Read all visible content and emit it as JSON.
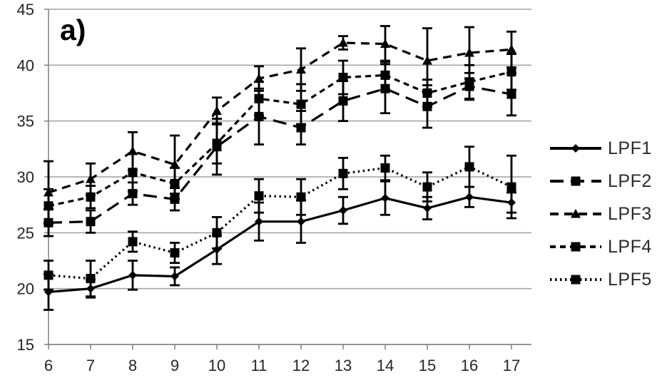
{
  "figure_label": "a)",
  "colors": {
    "series": "#000000",
    "gridline": "#a0a0a0",
    "axis": "#808080",
    "tick_text": "#262626"
  },
  "chart_data": {
    "type": "line",
    "title": "",
    "xlabel": "",
    "ylabel": "",
    "x": [
      6,
      7,
      8,
      9,
      10,
      11,
      12,
      13,
      14,
      15,
      16,
      17
    ],
    "ylim": [
      15,
      45
    ],
    "yticks": [
      15,
      20,
      25,
      30,
      35,
      40,
      45
    ],
    "grid": true,
    "legend_position": "right",
    "error_bars": true,
    "series": [
      {
        "name": "LPF1",
        "marker": "diamond",
        "line_style": "solid",
        "values": [
          19.7,
          20.0,
          21.2,
          21.1,
          23.5,
          26.0,
          26.0,
          27.0,
          28.1,
          27.2,
          28.2,
          27.7
        ],
        "errors": [
          1.6,
          0.8,
          1.3,
          0.8,
          1.3,
          1.7,
          1.9,
          1.2,
          1.5,
          1.0,
          0.9,
          0.9
        ]
      },
      {
        "name": "LPF2",
        "marker": "square",
        "line_style": "long-dash",
        "values": [
          25.9,
          26.0,
          28.5,
          28.0,
          32.7,
          35.4,
          34.4,
          36.8,
          37.9,
          36.3,
          38.1,
          37.4
        ],
        "errors": [
          1.2,
          1.0,
          1.0,
          1.0,
          2.5,
          2.5,
          1.5,
          1.8,
          2.2,
          1.9,
          1.2,
          1.9
        ]
      },
      {
        "name": "LPF3",
        "marker": "triangle",
        "line_style": "dash",
        "values": [
          28.6,
          29.8,
          32.3,
          31.1,
          35.9,
          38.8,
          39.6,
          42.0,
          41.9,
          40.4,
          41.1,
          41.4
        ],
        "errors": [
          2.8,
          1.4,
          1.7,
          2.6,
          1.2,
          1.1,
          1.9,
          0.6,
          1.6,
          2.9,
          2.3,
          1.6
        ]
      },
      {
        "name": "LPF4",
        "marker": "square",
        "line_style": "short-dash",
        "values": [
          27.4,
          28.2,
          30.4,
          29.4,
          33.0,
          37.0,
          36.5,
          38.9,
          39.1,
          37.5,
          38.5,
          39.4
        ],
        "errors": [
          1.5,
          1.0,
          1.7,
          1.4,
          1.8,
          1.5,
          1.8,
          1.5,
          1.3,
          1.2,
          1.5,
          1.6
        ]
      },
      {
        "name": "LPF5",
        "marker": "square",
        "line_style": "dotted",
        "values": [
          21.2,
          20.9,
          24.2,
          23.2,
          25.0,
          28.3,
          28.2,
          30.3,
          30.8,
          29.1,
          30.9,
          29.1
        ],
        "errors": [
          1.3,
          1.6,
          0.9,
          0.9,
          1.4,
          1.5,
          1.6,
          1.4,
          1.1,
          1.3,
          1.8,
          2.8
        ]
      }
    ]
  }
}
